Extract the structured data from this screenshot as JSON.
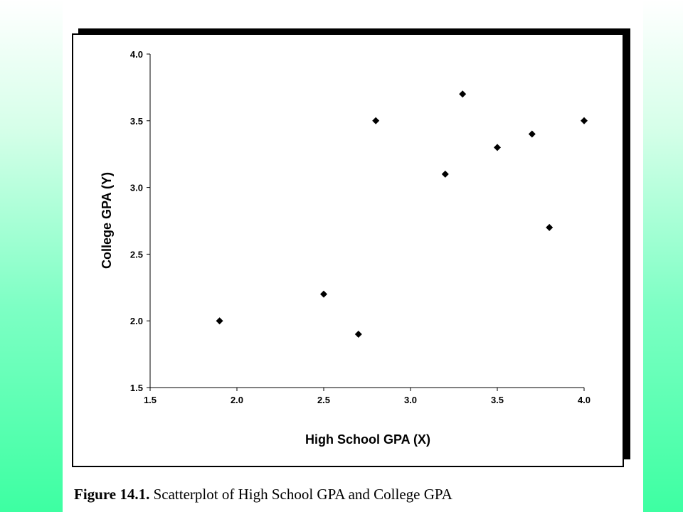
{
  "chart_data": {
    "type": "scatter",
    "xlabel": "High School GPA (X)",
    "ylabel": "College GPA (Y)",
    "xlim": [
      1.5,
      4.0
    ],
    "ylim": [
      1.5,
      4.0
    ],
    "xticks": [
      "1.5",
      "2.0",
      "2.5",
      "3.0",
      "3.5",
      "4.0"
    ],
    "yticks": [
      "1.5",
      "2.0",
      "2.5",
      "3.0",
      "3.5",
      "4.0"
    ],
    "grid": false,
    "marker": "diamond",
    "points": [
      {
        "x": 1.9,
        "y": 2.0
      },
      {
        "x": 2.5,
        "y": 2.2
      },
      {
        "x": 2.7,
        "y": 1.9
      },
      {
        "x": 2.8,
        "y": 3.5
      },
      {
        "x": 3.2,
        "y": 3.1
      },
      {
        "x": 3.3,
        "y": 3.7
      },
      {
        "x": 3.5,
        "y": 3.3
      },
      {
        "x": 3.7,
        "y": 3.4
      },
      {
        "x": 3.8,
        "y": 2.7
      },
      {
        "x": 4.0,
        "y": 3.5
      }
    ]
  },
  "caption": {
    "label": "Figure 14.1.",
    "text": " Scatterplot of High School GPA and College GPA"
  },
  "colors": {
    "background_top": "#ffffff",
    "background_bottom": "#3dffa2",
    "marker": "#000000"
  }
}
